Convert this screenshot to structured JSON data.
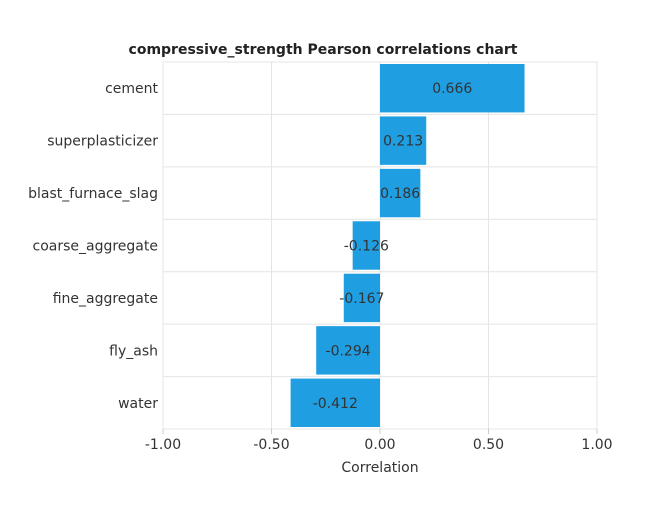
{
  "chart_data": {
    "type": "bar",
    "orientation": "horizontal",
    "title": "compressive_strength Pearson correlations chart",
    "xlabel": "Correlation",
    "ylabel": "",
    "xlim": [
      -1.0,
      1.0
    ],
    "xticks": [
      -1.0,
      -0.5,
      0.0,
      0.5,
      1.0
    ],
    "xtick_labels": [
      "-1.00",
      "-0.50",
      "0.00",
      "0.50",
      "1.00"
    ],
    "grid": true,
    "bar_color": "#1f9ee2",
    "categories": [
      "cement",
      "superplasticizer",
      "blast_furnace_slag",
      "coarse_aggregate",
      "fine_aggregate",
      "fly_ash",
      "water"
    ],
    "values": [
      0.666,
      0.213,
      0.186,
      -0.126,
      -0.167,
      -0.294,
      -0.412
    ],
    "value_labels": [
      "0.666",
      "0.213",
      "0.186",
      "-0.126",
      "-0.167",
      "-0.294",
      "-0.412"
    ]
  }
}
